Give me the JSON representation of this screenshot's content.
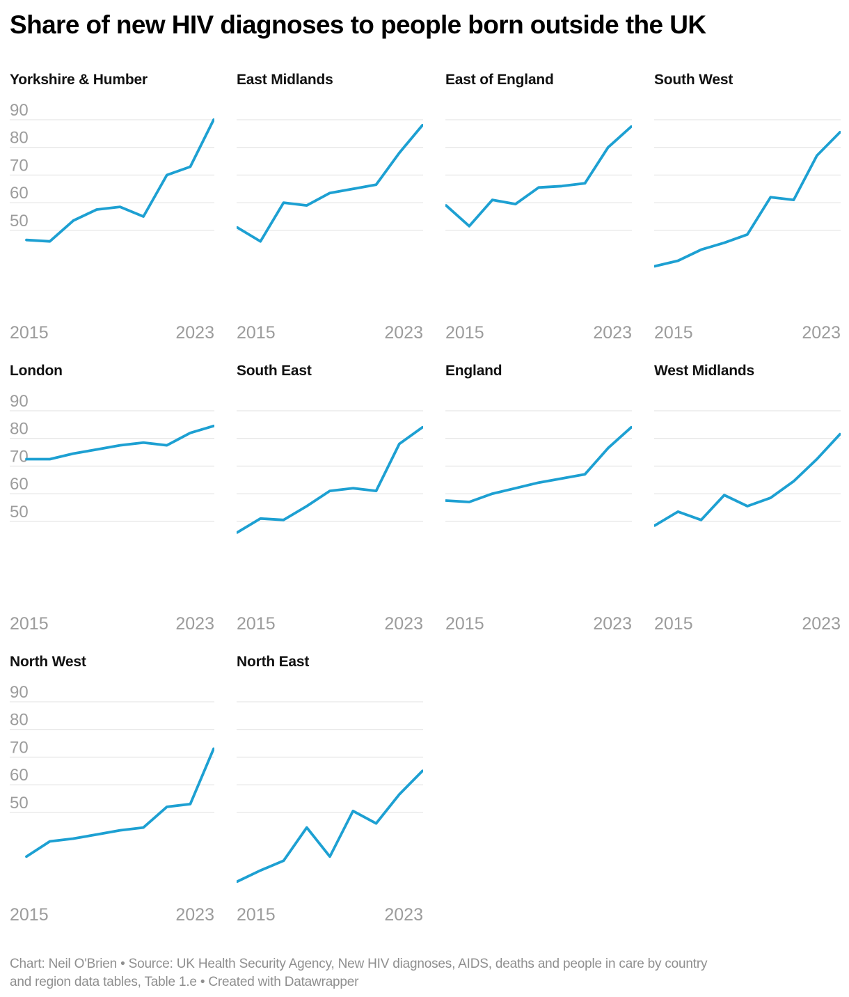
{
  "page_title": "Share of new HIV diagnoses to people born outside the UK",
  "footer": {
    "line1": "Chart: Neil O'Brien • Source: UK Health Security Agency, New HIV diagnoses, AIDS, deaths and people in care by country",
    "line2": "and region data tables, Table 1.e • Created with Datawrapper"
  },
  "colors": {
    "line": "#1da0d2",
    "grid": "#e0e0e0",
    "tick_label": "#9c9c9c",
    "region_title": "#111111",
    "title": "#000000",
    "footer_text": "#8f8f8f"
  },
  "chart_data": {
    "type": "line",
    "title": "Share of new HIV diagnoses to people born outside the UK",
    "layout": "small-multiples-4-columns",
    "grid": true,
    "x": [
      2015,
      2016,
      2017,
      2018,
      2019,
      2020,
      2021,
      2022,
      2023
    ],
    "x_tick_labels": [
      "2015",
      "2023"
    ],
    "y_ticks": [
      90,
      80,
      70,
      60,
      50
    ],
    "y_tick_labels": [
      "90",
      "80",
      "70",
      "60",
      "50"
    ],
    "ylabel": "",
    "xlabel": "",
    "series": [
      {
        "name": "Yorkshire & Humber",
        "show_y_labels": true,
        "values": [
          46.5,
          46,
          53.5,
          57.5,
          58.5,
          55,
          70,
          73,
          90
        ]
      },
      {
        "name": "East Midlands",
        "show_y_labels": false,
        "values": [
          51,
          46,
          60,
          59,
          63.5,
          65,
          66.5,
          78,
          88
        ]
      },
      {
        "name": "East of England",
        "show_y_labels": false,
        "values": [
          59,
          51.5,
          61,
          59.5,
          65.5,
          66,
          67,
          80,
          87.5
        ]
      },
      {
        "name": "South West",
        "show_y_labels": false,
        "values": [
          37,
          39,
          43,
          45.5,
          48.5,
          62,
          61,
          77,
          85.5
        ]
      },
      {
        "name": "London",
        "show_y_labels": true,
        "values": [
          72.5,
          72.5,
          74.5,
          76,
          77.5,
          78.5,
          77.5,
          82,
          84.5
        ]
      },
      {
        "name": "South East",
        "show_y_labels": false,
        "values": [
          46,
          51,
          50.5,
          55.5,
          61,
          62,
          61,
          78,
          84
        ]
      },
      {
        "name": "England",
        "show_y_labels": false,
        "values": [
          57.5,
          57,
          60,
          62,
          64,
          65.5,
          67,
          76.5,
          84
        ]
      },
      {
        "name": "West Midlands",
        "show_y_labels": false,
        "values": [
          48.5,
          53.5,
          50.5,
          59.5,
          55.5,
          58.5,
          64.5,
          72.5,
          81.5
        ]
      },
      {
        "name": "North West",
        "show_y_labels": true,
        "values": [
          34,
          39.5,
          40.5,
          42,
          43.5,
          44.5,
          52,
          53,
          73
        ]
      },
      {
        "name": "North East",
        "show_y_labels": false,
        "values": [
          25,
          29,
          32.5,
          44.5,
          34,
          50.5,
          46,
          56.5,
          65
        ]
      }
    ]
  }
}
